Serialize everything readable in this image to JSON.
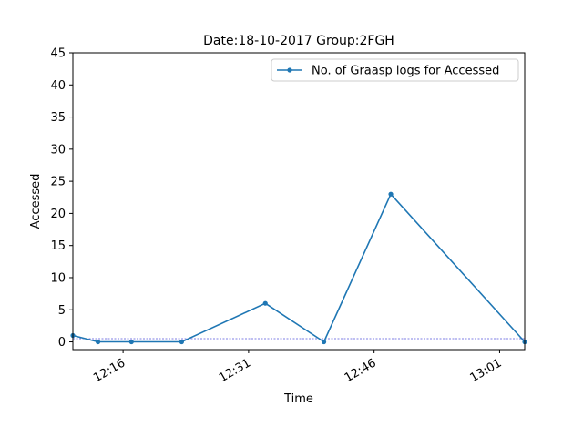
{
  "chart_data": {
    "type": "line",
    "title": "Date:18-10-2017  Group:2FGH",
    "xlabel": "Time",
    "ylabel": "Accessed",
    "ylim": [
      -1.2,
      45
    ],
    "xlim": [
      "12:10",
      "13:04"
    ],
    "y_ticks": [
      0,
      5,
      10,
      15,
      20,
      25,
      30,
      35,
      40,
      45
    ],
    "x_ticks": [
      "12:16",
      "12:31",
      "12:46",
      "13:01"
    ],
    "grid": false,
    "legend_position": "top-right",
    "series": [
      {
        "name": "No. of Graasp logs for Accessed",
        "color": "#1f77b4",
        "marker": "circle",
        "x": [
          "12:10",
          "12:13",
          "12:17",
          "12:23",
          "12:33",
          "12:40",
          "12:48",
          "13:04"
        ],
        "y": [
          1,
          0,
          0,
          0,
          6,
          0,
          23,
          0
        ]
      }
    ],
    "reference_line": {
      "y": 0.5,
      "color": "#0000cc",
      "style": "dashed"
    }
  }
}
